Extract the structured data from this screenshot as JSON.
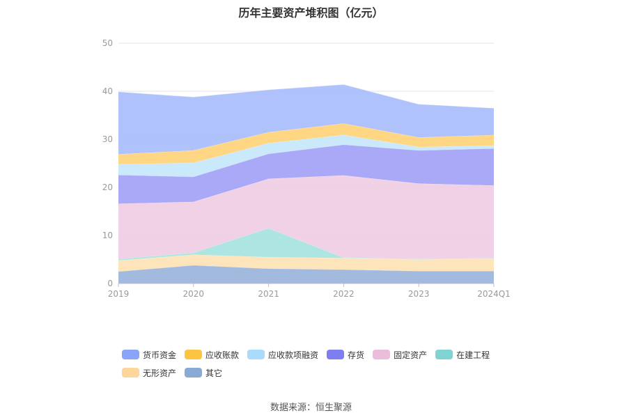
{
  "title": "历年主要资产堆积图（亿元）",
  "source": "数据来源：恒生聚源",
  "chart_data": {
    "type": "area",
    "stacked": true,
    "title": "历年主要资产堆积图（亿元）",
    "categories": [
      "2019",
      "2020",
      "2021",
      "2022",
      "2023",
      "2024Q1"
    ],
    "ylim": [
      0,
      50
    ],
    "yticks": [
      0,
      10,
      20,
      30,
      40,
      50
    ],
    "grid": true,
    "legend_position": "bottom",
    "series": [
      {
        "name": "其它",
        "color": "#9bb4dc",
        "legend_color": "#8aaad6",
        "values": [
          2.5,
          3.8,
          3.1,
          2.9,
          2.6,
          2.6
        ]
      },
      {
        "name": "无形资产",
        "color": "#fde2b5",
        "legend_color": "#fcd69b",
        "values": [
          2.3,
          2.2,
          2.4,
          2.4,
          2.4,
          2.6
        ]
      },
      {
        "name": "在建工程",
        "color": "#a6e3e0",
        "legend_color": "#7fd3d0",
        "values": [
          0.3,
          0.4,
          6.0,
          0.1,
          0.1,
          0.1
        ]
      },
      {
        "name": "固定资产",
        "color": "#f0cde3",
        "legend_color": "#ecbcdb",
        "values": [
          11.5,
          10.6,
          10.3,
          17.1,
          15.7,
          15.1
        ]
      },
      {
        "name": "存货",
        "color": "#a2a2f7",
        "legend_color": "#7f7ef0",
        "values": [
          6.0,
          5.2,
          5.2,
          6.4,
          6.9,
          7.7
        ]
      },
      {
        "name": "应收款项融资",
        "color": "#c6e8fb",
        "legend_color": "#a9dcfa",
        "values": [
          2.2,
          2.9,
          2.2,
          2.0,
          0.7,
          0.6
        ]
      },
      {
        "name": "应收账款",
        "color": "#fed27a",
        "legend_color": "#fcc441",
        "values": [
          2.1,
          2.6,
          2.3,
          2.4,
          2.0,
          2.2
        ]
      },
      {
        "name": "货币资金",
        "color": "#a8bdfb",
        "legend_color": "#8aa5f8",
        "values": [
          13.0,
          11.1,
          8.8,
          8.1,
          6.9,
          5.6
        ]
      }
    ],
    "legend_order": [
      "货币资金",
      "应收账款",
      "应收款项融资",
      "存货",
      "固定资产",
      "在建工程",
      "无形资产",
      "其它"
    ]
  }
}
